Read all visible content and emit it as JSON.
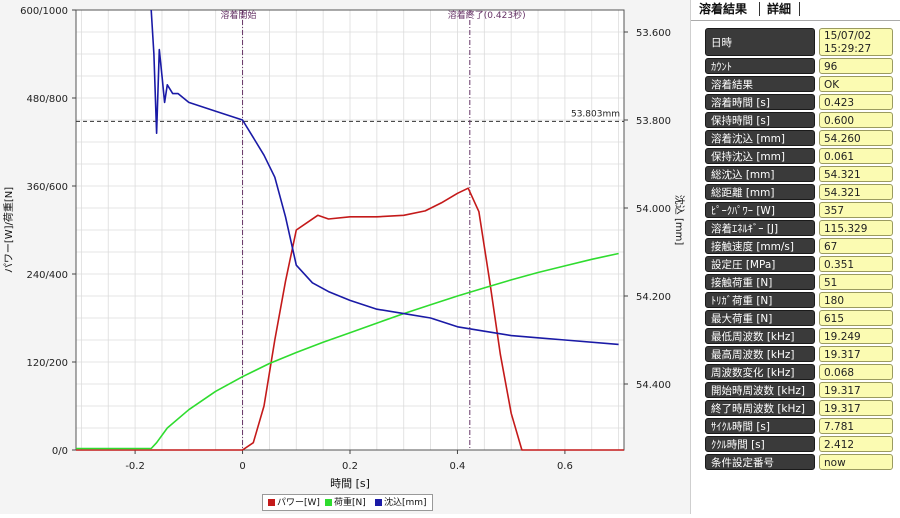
{
  "chart_data": {
    "type": "line",
    "xlabel": "時間 [s]",
    "ylabel_left": "パワー[W]/荷重[N]",
    "ylabel_right": "沈込 [mm]",
    "x_ticks": [
      "-0.2",
      "0",
      "0.2",
      "0.4",
      "0.6"
    ],
    "x_tick_values": [
      -0.2,
      0,
      0.2,
      0.4,
      0.6
    ],
    "xlim": [
      -0.31,
      0.71
    ],
    "y_left_ticks": [
      "0/0",
      "120/200",
      "240/400",
      "360/600",
      "480/800",
      "600/1000"
    ],
    "y_left_tick_values": [
      0,
      120,
      240,
      360,
      480,
      600
    ],
    "ylim_left": [
      0,
      600
    ],
    "y_right_ticks": [
      "53.600",
      "53.800",
      "54.000",
      "54.200",
      "54.400"
    ],
    "y_right_tick_values": [
      53.6,
      53.8,
      54.0,
      54.2,
      54.4
    ],
    "ylim_right": [
      53.55,
      54.55
    ],
    "grid": true,
    "legend_position": "bottom",
    "markers": [
      {
        "label": "溶着開始",
        "x": 0.0
      },
      {
        "label": "溶着終了(0.423秒)",
        "x": 0.423
      }
    ],
    "hline": {
      "label": "53.803mm",
      "y_right": 53.803
    },
    "series": [
      {
        "name": "パワー[W]",
        "color": "#c41a1a",
        "axis": "left",
        "x": [
          -0.31,
          0.0,
          0.02,
          0.04,
          0.06,
          0.08,
          0.1,
          0.12,
          0.14,
          0.16,
          0.2,
          0.25,
          0.3,
          0.34,
          0.37,
          0.4,
          0.42,
          0.44,
          0.46,
          0.48,
          0.5,
          0.52,
          0.71
        ],
        "y": [
          0,
          0,
          10,
          60,
          150,
          230,
          300,
          310,
          320,
          315,
          318,
          318,
          320,
          326,
          337,
          350,
          357,
          325,
          230,
          130,
          50,
          0,
          0
        ]
      },
      {
        "name": "荷重[N]",
        "color": "#2fdc2f",
        "axis": "left",
        "x": [
          -0.31,
          -0.17,
          -0.16,
          -0.14,
          -0.1,
          -0.05,
          0.0,
          0.05,
          0.1,
          0.15,
          0.2,
          0.25,
          0.3,
          0.35,
          0.4,
          0.45,
          0.5,
          0.55,
          0.6,
          0.65,
          0.7
        ],
        "y": [
          2,
          2,
          10,
          30,
          55,
          80,
          100,
          118,
          133,
          147,
          160,
          173,
          186,
          198,
          210,
          221,
          232,
          242,
          251,
          260,
          268
        ]
      },
      {
        "name": "沈込[mm]",
        "color": "#1a1aa6",
        "axis": "right",
        "x": [
          -0.17,
          -0.165,
          -0.16,
          -0.155,
          -0.15,
          -0.145,
          -0.14,
          -0.13,
          -0.12,
          -0.1,
          -0.05,
          0.0,
          0.02,
          0.04,
          0.06,
          0.08,
          0.1,
          0.13,
          0.16,
          0.2,
          0.25,
          0.3,
          0.35,
          0.4,
          0.45,
          0.5,
          0.55,
          0.6,
          0.7
        ],
        "y": [
          53.55,
          53.65,
          53.83,
          53.64,
          53.7,
          53.76,
          53.72,
          53.74,
          53.74,
          53.76,
          53.78,
          53.8,
          53.84,
          53.88,
          53.93,
          54.02,
          54.13,
          54.17,
          54.19,
          54.21,
          54.23,
          54.24,
          54.25,
          54.27,
          54.28,
          54.29,
          54.295,
          54.3,
          54.31
        ]
      }
    ]
  },
  "legend": [
    {
      "label": "パワー[W]",
      "color": "#c41a1a"
    },
    {
      "label": "荷重[N]",
      "color": "#2fdc2f"
    },
    {
      "label": "沈込[mm]",
      "color": "#1a1aa6"
    }
  ],
  "panel": {
    "tabs": [
      "溶着結果",
      "詳細"
    ],
    "rows": [
      {
        "label": "日時",
        "value": "15/07/02",
        "value2": "15:29:27"
      },
      {
        "label": "ｶｳﾝﾄ",
        "value": "96"
      },
      {
        "label": "溶着結果",
        "value": "OK"
      },
      {
        "label": "溶着時間 [s]",
        "value": "0.423"
      },
      {
        "label": "保持時間 [s]",
        "value": "0.600"
      },
      {
        "label": "溶着沈込 [mm]",
        "value": "54.260"
      },
      {
        "label": "保持沈込 [mm]",
        "value": "0.061"
      },
      {
        "label": "総沈込 [mm]",
        "value": "54.321"
      },
      {
        "label": "総距離 [mm]",
        "value": "54.321"
      },
      {
        "label": "ﾋﾟｰｸﾊﾟﾜｰ [W]",
        "value": "357"
      },
      {
        "label": "溶着ｴﾈﾙｷﾞｰ [J]",
        "value": "115.329"
      },
      {
        "label": "接触速度 [mm/s]",
        "value": "67"
      },
      {
        "label": "設定圧 [MPa]",
        "value": "0.351"
      },
      {
        "label": "接触荷重 [N]",
        "value": "51"
      },
      {
        "label": "ﾄﾘｶﾞ荷重 [N]",
        "value": "180"
      },
      {
        "label": "最大荷重 [N]",
        "value": "615"
      },
      {
        "label": "最低周波数 [kHz]",
        "value": "19.249"
      },
      {
        "label": "最高周波数 [kHz]",
        "value": "19.317"
      },
      {
        "label": "周波数変化 [kHz]",
        "value": "0.068"
      },
      {
        "label": "開始時周波数 [kHz]",
        "value": "19.317"
      },
      {
        "label": "終了時周波数 [kHz]",
        "value": "19.317"
      },
      {
        "label": "ｻｲｸﾙ時間 [s]",
        "value": "7.781"
      },
      {
        "label": "ｸｸﾙ時間 [s]",
        "value": "2.412"
      },
      {
        "label": "条件設定番号",
        "value": "now"
      }
    ]
  }
}
